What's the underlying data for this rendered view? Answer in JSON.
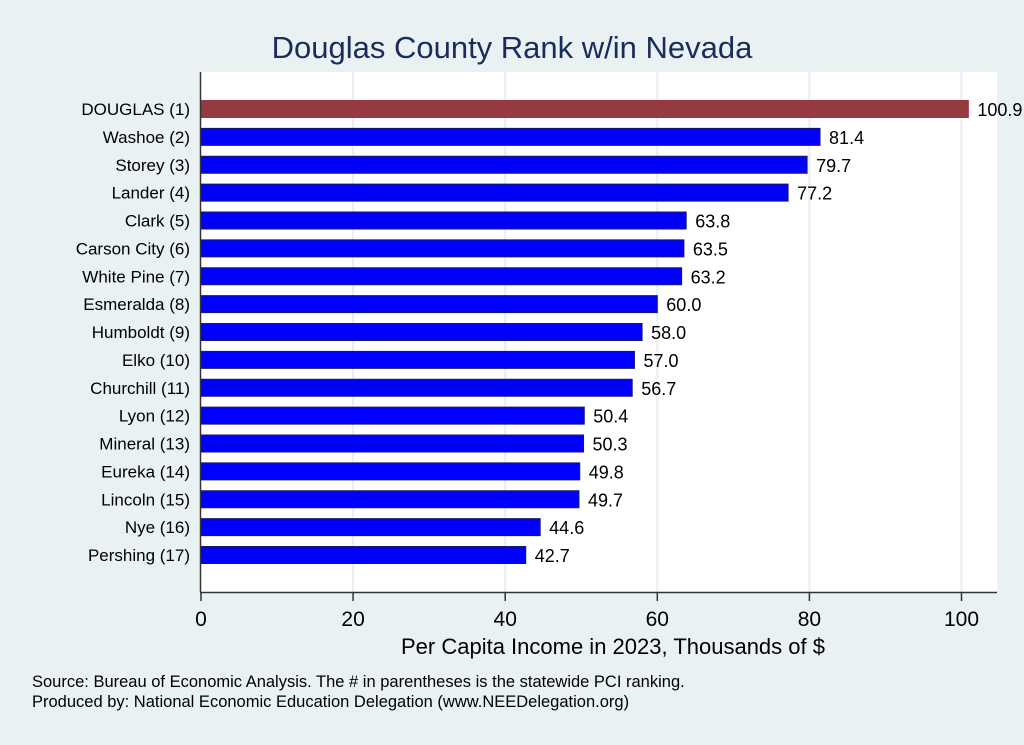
{
  "chart_data": {
    "type": "bar",
    "orientation": "horizontal",
    "title": "Douglas County Rank w/in Nevada",
    "xlabel": "Per Capita Income in 2023, Thousands of $",
    "ylabel": "",
    "xlim": [
      0,
      104.5
    ],
    "xticks": [
      0,
      20,
      40,
      60,
      80,
      100
    ],
    "grid": true,
    "categories": [
      "DOUGLAS  (1)",
      "Washoe  (2)",
      "Storey  (3)",
      "Lander  (4)",
      "Clark  (5)",
      "Carson City  (6)",
      "White Pine  (7)",
      "Esmeralda  (8)",
      "Humboldt  (9)",
      "Elko (10)",
      "Churchill (11)",
      "Lyon (12)",
      "Mineral (13)",
      "Eureka (14)",
      "Lincoln (15)",
      "Nye (16)",
      "Pershing (17)"
    ],
    "values": [
      100.9,
      81.4,
      79.7,
      77.2,
      63.8,
      63.5,
      63.2,
      60.0,
      58.0,
      57.0,
      56.7,
      50.4,
      50.3,
      49.8,
      49.7,
      44.6,
      42.7
    ],
    "value_labels": [
      "100.9",
      "81.4",
      "79.7",
      "77.2",
      "63.8",
      "63.5",
      "63.2",
      "60.0",
      "58.0",
      "57.0",
      "56.7",
      "50.4",
      "50.3",
      "49.8",
      "49.7",
      "44.6",
      "42.7"
    ],
    "highlight_index": 0,
    "colors": {
      "highlight": "#943a40",
      "bar": "#0000ff",
      "bar_edge": "#1a1a66",
      "grid": "#e6eff2",
      "background": "#eaf1f3",
      "plot": "#ffffff",
      "title": "#1a2d5a"
    }
  },
  "notes": {
    "source": "Source: Bureau of Economic Analysis. The # in parentheses is the statewide PCI ranking.",
    "producer": "Produced by: National Economic Education Delegation (www.NEEDelegation.org)"
  }
}
